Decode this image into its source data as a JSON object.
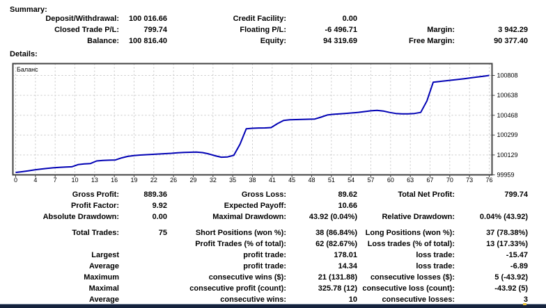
{
  "summary": {
    "heading": "Summary:",
    "rows": [
      [
        "Deposit/Withdrawal:",
        "100 016.66",
        "Credit Facility:",
        "0.00",
        "",
        ""
      ],
      [
        "Closed Trade P/L:",
        "799.74",
        "Floating P/L:",
        "-6 496.71",
        "Margin:",
        "3 942.29"
      ],
      [
        "Balance:",
        "100 816.40",
        "Equity:",
        "94 319.69",
        "Free Margin:",
        "90 377.40"
      ]
    ]
  },
  "details": {
    "heading": "Details:",
    "group_a": [
      [
        "Gross Profit:",
        "889.36",
        "Gross Loss:",
        "89.62",
        "Total Net Profit:",
        "799.74"
      ],
      [
        "Profit Factor:",
        "9.92",
        "Expected Payoff:",
        "10.66",
        "",
        ""
      ],
      [
        "Absolute Drawdown:",
        "0.00",
        "Maximal Drawdown:",
        "43.92 (0.04%)",
        "Relative Drawdown:",
        "0.04% (43.92)"
      ]
    ],
    "group_b": [
      [
        "Total Trades:",
        "75",
        "Short Positions (won %):",
        "38 (86.84%)",
        "Long Positions (won %):",
        "37 (78.38%)"
      ],
      [
        "",
        "",
        "Profit Trades (% of total):",
        "62 (82.67%)",
        "Loss trades (% of total):",
        "13 (17.33%)"
      ],
      [
        "Largest",
        "",
        "profit trade:",
        "178.01",
        "loss trade:",
        "-15.47"
      ],
      [
        "Average",
        "",
        "profit trade:",
        "14.34",
        "loss trade:",
        "-6.89"
      ],
      [
        "Maximum",
        "",
        "consecutive wins ($):",
        "21 (131.88)",
        "consecutive losses ($):",
        "5 (-43.92)"
      ],
      [
        "Maximal",
        "",
        "consecutive profit (count):",
        "325.78 (12)",
        "consecutive loss (count):",
        "-43.92 (5)"
      ],
      [
        "Average",
        "",
        "consecutive wins:",
        "10",
        "consecutive losses:",
        "3"
      ]
    ]
  },
  "chart_data": {
    "type": "line",
    "title": "Баланс",
    "legend": [
      "Баланс"
    ],
    "xlabel": "",
    "ylabel": "",
    "xlim": [
      0,
      76
    ],
    "ylim": [
      99959,
      100808
    ],
    "x_ticks": [
      0,
      4,
      7,
      10,
      13,
      16,
      19,
      22,
      26,
      29,
      32,
      35,
      38,
      41,
      45,
      48,
      51,
      54,
      57,
      60,
      63,
      67,
      70,
      73,
      76
    ],
    "y_ticks": [
      99959,
      100129,
      100299,
      100468,
      100638,
      100808
    ],
    "grid": "dashed",
    "line_color": "#0000b4",
    "grid_color": "#c6c6c6",
    "frame_color": "#434343",
    "series": [
      {
        "name": "Баланс",
        "x_unit": "trade #",
        "values": [
          99980,
          99986,
          99993,
          100001,
          100008,
          100014,
          100019,
          100023,
          100026,
          100028,
          100046,
          100052,
          100056,
          100078,
          100082,
          100084,
          100086,
          100104,
          100117,
          100124,
          100128,
          100131,
          100134,
          100137,
          100140,
          100143,
          100147,
          100150,
          100152,
          100153,
          100149,
          100138,
          100122,
          100110,
          100112,
          100126,
          100220,
          100352,
          100357,
          100359,
          100360,
          100363,
          100396,
          100424,
          100429,
          100431,
          100432,
          100434,
          100436,
          100452,
          100470,
          100476,
          100480,
          100484,
          100488,
          100493,
          100499,
          100506,
          100510,
          100504,
          100492,
          100483,
          100480,
          100480,
          100483,
          100492,
          100590,
          100750,
          100756,
          100762,
          100768,
          100774,
          100780,
          100787,
          100794,
          100801,
          100808
        ]
      }
    ]
  }
}
